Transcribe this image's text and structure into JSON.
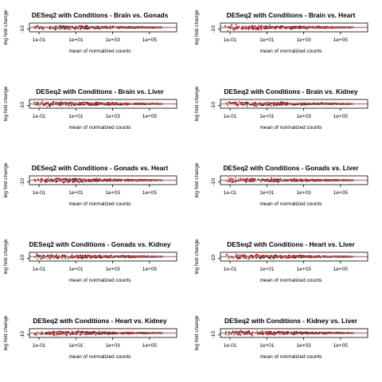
{
  "chart_data": [
    {
      "type": "scatter",
      "title": "DESeq2 with Conditions - Brain vs. Gonads",
      "xlabel": "mean of normalized counts",
      "ylabel": "log fold change",
      "x_scale": "log10",
      "xlim": [
        0.03,
        3000000
      ],
      "ylim": [
        -25,
        25
      ],
      "x_ticks": [
        "1e-01",
        "1e+01",
        "1e+03",
        "1e+05"
      ],
      "y_ticks": [
        "-10"
      ],
      "point_color": "#cc0000",
      "band_color": "#ffc8c8"
    },
    {
      "type": "scatter",
      "title": "DESeq2 with Conditions - Brain vs. Heart",
      "xlabel": "mean of normalized counts",
      "ylabel": "log fold change",
      "x_scale": "log10",
      "xlim": [
        0.03,
        3000000
      ],
      "ylim": [
        -25,
        25
      ],
      "x_ticks": [
        "1e-01",
        "1e+01",
        "1e+03",
        "1e+05"
      ],
      "y_ticks": [
        "-10"
      ],
      "point_color": "#cc0000",
      "band_color": "#ffc8c8"
    },
    {
      "type": "scatter",
      "title": "DESeq2 with Conditions - Brain vs. Liver",
      "xlabel": "mean of normalized counts",
      "ylabel": "log fold change",
      "x_scale": "log10",
      "xlim": [
        0.03,
        3000000
      ],
      "ylim": [
        -25,
        25
      ],
      "x_ticks": [
        "1e-01",
        "1e+01",
        "1e+03",
        "1e+05"
      ],
      "y_ticks": [
        "-10"
      ],
      "point_color": "#cc0000",
      "band_color": "#ffc8c8"
    },
    {
      "type": "scatter",
      "title": "DESeq2 with Conditions - Brain vs. Kidney",
      "xlabel": "mean of normalized counts",
      "ylabel": "log fold change",
      "x_scale": "log10",
      "xlim": [
        0.03,
        3000000
      ],
      "ylim": [
        -25,
        25
      ],
      "x_ticks": [
        "1e-01",
        "1e+01",
        "1e+03",
        "1e+05"
      ],
      "y_ticks": [
        "-10"
      ],
      "point_color": "#cc0000",
      "band_color": "#ffc8c8"
    },
    {
      "type": "scatter",
      "title": "DESeq2 with Conditions - Gonads vs. Heart",
      "xlabel": "mean of normalized counts",
      "ylabel": "log fold change",
      "x_scale": "log10",
      "xlim": [
        0.03,
        3000000
      ],
      "ylim": [
        -25,
        25
      ],
      "x_ticks": [
        "1e-01",
        "1e+01",
        "1e+03",
        "1e+05"
      ],
      "y_ticks": [
        "-10"
      ],
      "point_color": "#cc0000",
      "band_color": "#ffc8c8"
    },
    {
      "type": "scatter",
      "title": "DESeq2 with Conditions - Gonads vs. Liver",
      "xlabel": "mean of normalized counts",
      "ylabel": "log fold change",
      "x_scale": "log10",
      "xlim": [
        0.03,
        3000000
      ],
      "ylim": [
        -25,
        25
      ],
      "x_ticks": [
        "1e-01",
        "1e+01",
        "1e+03",
        "1e+05"
      ],
      "y_ticks": [
        "-10"
      ],
      "point_color": "#cc0000",
      "band_color": "#ffc8c8"
    },
    {
      "type": "scatter",
      "title": "DESeq2 with Conditions - Gonads vs. Kidney",
      "xlabel": "mean of normalized counts",
      "ylabel": "log fold change",
      "x_scale": "log10",
      "xlim": [
        0.03,
        3000000
      ],
      "ylim": [
        -25,
        25
      ],
      "x_ticks": [
        "1e-01",
        "1e+01",
        "1e+03",
        "1e+05"
      ],
      "y_ticks": [
        "-10"
      ],
      "point_color": "#cc0000",
      "band_color": "#ffc8c8"
    },
    {
      "type": "scatter",
      "title": "DESeq2 with Conditions - Heart vs. Liver",
      "xlabel": "mean of normalized counts",
      "ylabel": "log fold change",
      "x_scale": "log10",
      "xlim": [
        0.03,
        3000000
      ],
      "ylim": [
        -25,
        25
      ],
      "x_ticks": [
        "1e-01",
        "1e+01",
        "1e+03",
        "1e+05"
      ],
      "y_ticks": [
        "-10"
      ],
      "point_color": "#cc0000",
      "band_color": "#ffc8c8"
    },
    {
      "type": "scatter",
      "title": "DESeq2 with Conditions - Heart vs. Kidney",
      "xlabel": "mean of normalized counts",
      "ylabel": "log fold change",
      "x_scale": "log10",
      "xlim": [
        0.03,
        3000000
      ],
      "ylim": [
        -25,
        25
      ],
      "x_ticks": [
        "1e-01",
        "1e+01",
        "1e+03",
        "1e+05"
      ],
      "y_ticks": [
        "-10"
      ],
      "point_color": "#cc0000",
      "band_color": "#ffc8c8"
    },
    {
      "type": "scatter",
      "title": "DESeq2 with Conditions - Kidney vs. Liver",
      "xlabel": "mean of normalized counts",
      "ylabel": "log fold change",
      "x_scale": "log10",
      "xlim": [
        0.03,
        3000000
      ],
      "ylim": [
        -25,
        25
      ],
      "x_ticks": [
        "1e-01",
        "1e+01",
        "1e+03",
        "1e+05"
      ],
      "y_ticks": [
        "-10"
      ],
      "point_color": "#cc0000",
      "band_color": "#ffc8c8"
    }
  ]
}
